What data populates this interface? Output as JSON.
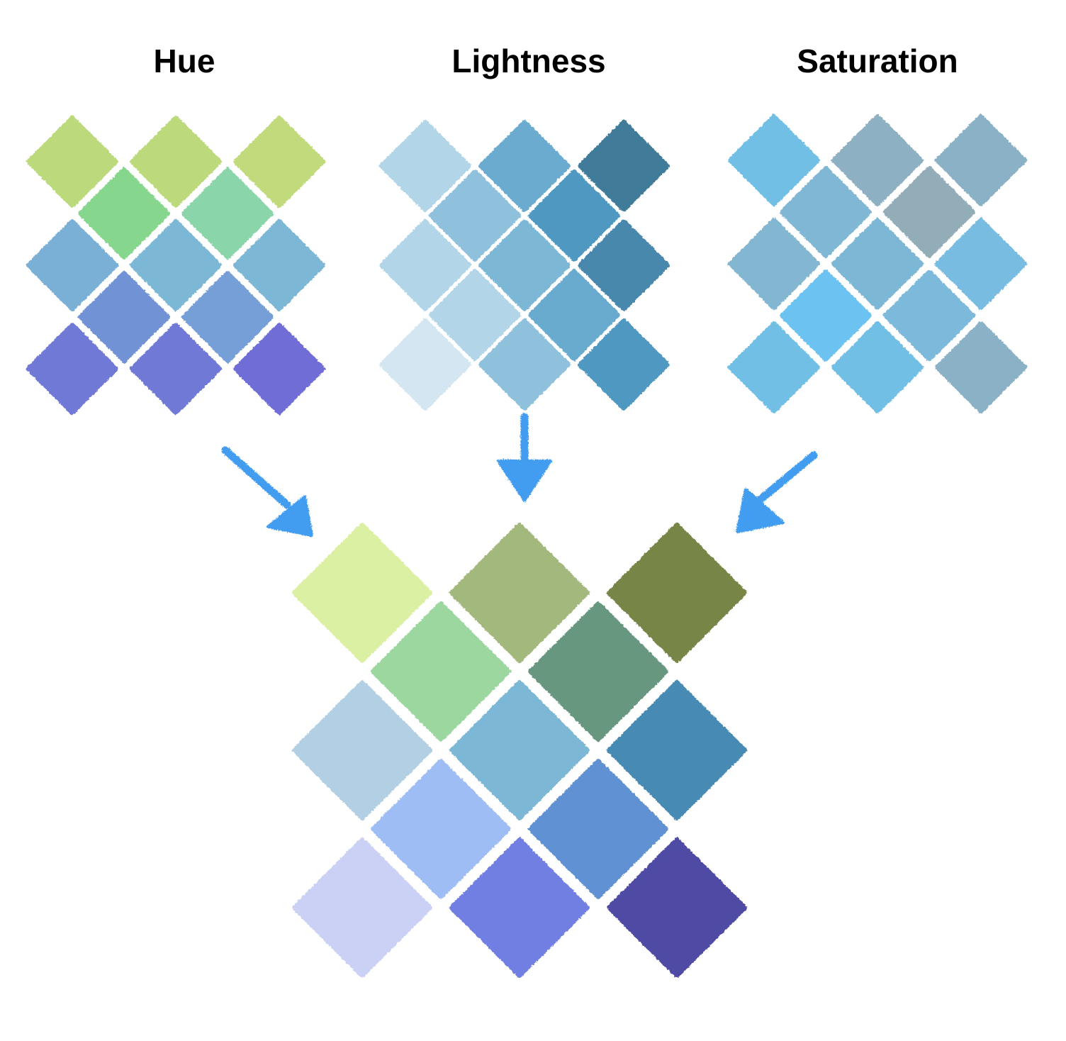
{
  "panels": [
    {
      "title": "Hue",
      "grid": [
        [
          "#bcd97c",
          "#bcd97c",
          "#c1da7b"
        ],
        [
          "#86d68d",
          "#8ad6aa"
        ],
        [
          "#7ab0d6",
          "#7bb7d6",
          "#7cb7d6"
        ],
        [
          "#7292d6",
          "#749fd6"
        ],
        [
          "#6f7ad6",
          "#6f7ad6",
          "#706ed6"
        ]
      ]
    },
    {
      "title": "Lightness",
      "grid": [
        [
          "#b2d5e7",
          "#6aabcf",
          "#407b9a"
        ],
        [
          "#8fc1dc",
          "#4f98c1"
        ],
        [
          "#b2d5e7",
          "#7cb7d6",
          "#4a88ad"
        ],
        [
          "#b2d5e7",
          "#69aacf"
        ],
        [
          "#d3e6f1",
          "#8fc1dc",
          "#4f98c1"
        ]
      ]
    },
    {
      "title": "Saturation",
      "grid": [
        [
          "#72bfe6",
          "#8eb0c3",
          "#8bb1c6"
        ],
        [
          "#80b7d4",
          "#93adb8"
        ],
        [
          "#82b6d1",
          "#7cb7d6",
          "#78bce1"
        ],
        [
          "#6cc2f0",
          "#7bb9db"
        ],
        [
          "#72bfe6",
          "#72bfe6",
          "#8bb1c6"
        ]
      ]
    }
  ],
  "combined": {
    "grid": [
      [
        "#dcf0a4",
        "#a3b87b",
        "#778546"
      ],
      [
        "#9bd79f",
        "#67977f"
      ],
      [
        "#b2cfe4",
        "#7cb7d6",
        "#468bb4"
      ],
      [
        "#9ebdf4",
        "#5e91d3"
      ],
      [
        "#cbd0f5",
        "#717fe2",
        "#4f4ca5"
      ]
    ]
  },
  "arrow_color": "#429df1"
}
